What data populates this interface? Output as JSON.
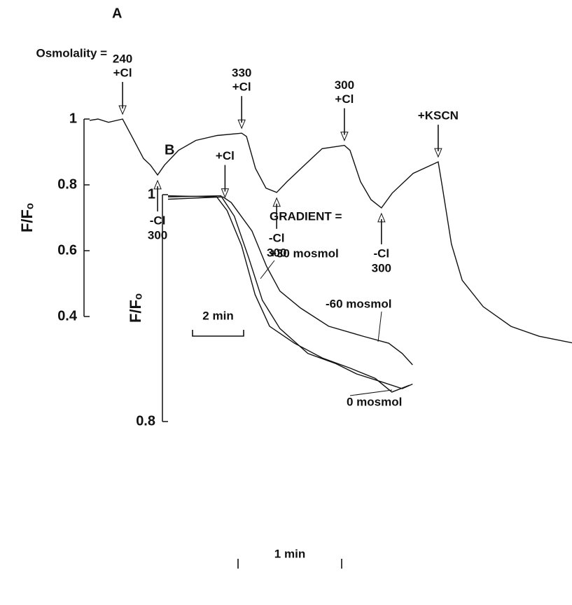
{
  "chart_data": [
    {
      "type": "line",
      "title": "A",
      "ylabel": "F/Fₒ",
      "annotation_prefix": "Osmolality =",
      "ylim": [
        0.4,
        1
      ],
      "yticks": [
        1,
        0.8,
        0.6,
        0.4
      ],
      "color": "#111111",
      "scalebar": {
        "value": 2,
        "label": "2 min"
      },
      "x": [
        0,
        0.33,
        0.74,
        1.29,
        1.7,
        2.11,
        2.38,
        2.66,
        2.93,
        3.48,
        4.16,
        4.99,
        5.95,
        6.14,
        6.49,
        6.9,
        7.32,
        7.73,
        8.41,
        9.1,
        9.97,
        10.19,
        10.6,
        11.01,
        11.42,
        11.84,
        12.66,
        13.64,
        13.81,
        14.16,
        14.58,
        15.4,
        16.49,
        17.59,
        18.88
      ],
      "values": [
        0.996,
        1.0,
        0.99,
        1.0,
        0.94,
        0.88,
        0.86,
        0.83,
        0.86,
        0.905,
        0.935,
        0.95,
        0.957,
        0.947,
        0.85,
        0.79,
        0.777,
        0.81,
        0.86,
        0.91,
        0.92,
        0.905,
        0.81,
        0.755,
        0.73,
        0.775,
        0.835,
        0.87,
        0.79,
        0.62,
        0.51,
        0.43,
        0.37,
        0.34,
        0.32
      ],
      "annotations": [
        {
          "x": 1.29,
          "direction": "down",
          "lines": [
            "240",
            "+Cl"
          ]
        },
        {
          "x": 2.66,
          "direction": "up",
          "lines": [
            "-Cl",
            "300"
          ]
        },
        {
          "x": 5.95,
          "direction": "down",
          "lines": [
            "330",
            "+Cl"
          ]
        },
        {
          "x": 7.32,
          "direction": "up",
          "lines": [
            "-Cl",
            "300"
          ]
        },
        {
          "x": 9.97,
          "direction": "down",
          "lines": [
            "300",
            "+Cl"
          ]
        },
        {
          "x": 11.42,
          "direction": "up",
          "lines": [
            "-Cl",
            "300"
          ]
        },
        {
          "x": 13.64,
          "direction": "down",
          "lines": [
            "+KSCN"
          ]
        }
      ]
    },
    {
      "type": "line",
      "title": "B",
      "ylabel": "F/Fₒ",
      "legend_title": "GRADIENT =",
      "ylim": [
        0.8,
        1
      ],
      "yticks": [
        1,
        0.8
      ],
      "color": "#111111",
      "scalebar": {
        "value": 1,
        "label": "1 min"
      },
      "series": [
        {
          "name": "+30 mosmol",
          "x": [
            0,
            0.51,
            0.64,
            0.78,
            0.91,
            1.08,
            1.35,
            1.62,
            1.82,
            2.06,
            2.26,
            2.36
          ],
          "values": [
            0.998,
            0.999,
            0.981,
            0.944,
            0.907,
            0.882,
            0.86,
            0.851,
            0.842,
            0.835,
            0.829,
            0.833
          ]
        },
        {
          "name": "-60 mosmol",
          "x": [
            0,
            0.53,
            0.61,
            0.81,
            0.95,
            1.08,
            1.28,
            1.55,
            1.89,
            2.13,
            2.26,
            2.36
          ],
          "values": [
            0.996,
            0.998,
            0.993,
            0.968,
            0.937,
            0.915,
            0.9,
            0.884,
            0.875,
            0.869,
            0.86,
            0.85
          ]
        },
        {
          "name": "0 mosmol",
          "x": [
            0,
            0.47,
            0.57,
            0.71,
            0.84,
            0.98,
            1.22,
            1.49,
            1.76,
            2.0,
            2.16,
            2.33
          ],
          "values": [
            0.999,
            0.998,
            0.986,
            0.955,
            0.912,
            0.884,
            0.869,
            0.856,
            0.847,
            0.838,
            0.826,
            0.832
          ]
        }
      ],
      "annotations": [
        {
          "x": 0.55,
          "direction": "down",
          "lines": [
            "+Cl"
          ]
        }
      ]
    }
  ]
}
